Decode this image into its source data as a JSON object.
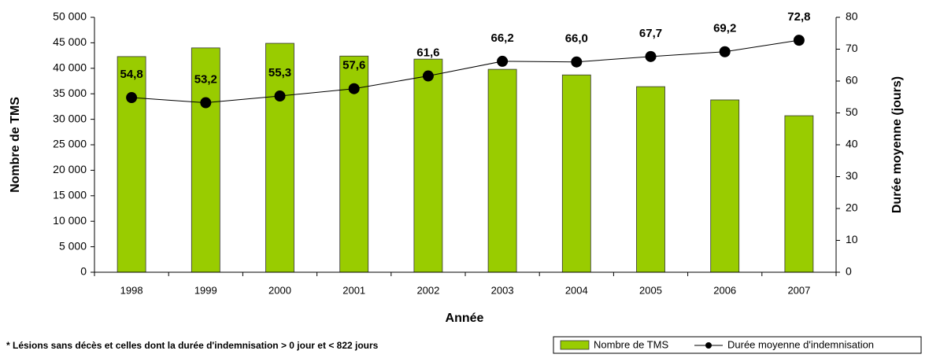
{
  "chart_data": {
    "type": "bar",
    "categories": [
      "1998",
      "1999",
      "2000",
      "2001",
      "2002",
      "2003",
      "2004",
      "2005",
      "2006",
      "2007"
    ],
    "series": [
      {
        "name": "Nombre de TMS",
        "type": "bar",
        "color": "#99cc00",
        "values": [
          42300,
          44000,
          44900,
          42400,
          41800,
          39800,
          38700,
          36400,
          33800,
          30700
        ]
      },
      {
        "name": "Durée moyenne d'indemnisation",
        "type": "line",
        "axis": "y2",
        "color": "#000000",
        "values": [
          54.8,
          53.2,
          55.3,
          57.6,
          61.6,
          66.2,
          66.0,
          67.7,
          69.2,
          72.8
        ],
        "value_labels": [
          "54,8",
          "53,2",
          "55,3",
          "57,6",
          "61,6",
          "66,2",
          "66,0",
          "67,7",
          "69,2",
          "72,8"
        ]
      }
    ],
    "ylim": [
      0,
      50000
    ],
    "yticks": [
      0,
      {
        "value": 5000,
        "label": "5 000"
      },
      {
        "value": 10000,
        "label": "10 000"
      },
      {
        "value": 15000,
        "label": "15 000"
      },
      {
        "value": 20000,
        "label": "20 000"
      },
      {
        "value": 25000,
        "label": "25 000"
      },
      {
        "value": 30000,
        "label": "30 000"
      },
      {
        "value": 35000,
        "label": "35 000"
      },
      {
        "value": 40000,
        "label": "40 000"
      },
      {
        "value": 45000,
        "label": "45 000"
      },
      {
        "value": 50000,
        "label": "50 000"
      }
    ],
    "y2lim": [
      0,
      80
    ],
    "y2ticks": [
      0,
      10,
      20,
      30,
      40,
      50,
      60,
      70,
      80
    ],
    "xlabel": "Année",
    "ylabel": "Nombre de TMS",
    "y2label": "Durée moyenne (jours)",
    "note": "* Lésions sans décès et celles dont la durée d'indemnisation > 0 jour et < 822 jours"
  }
}
